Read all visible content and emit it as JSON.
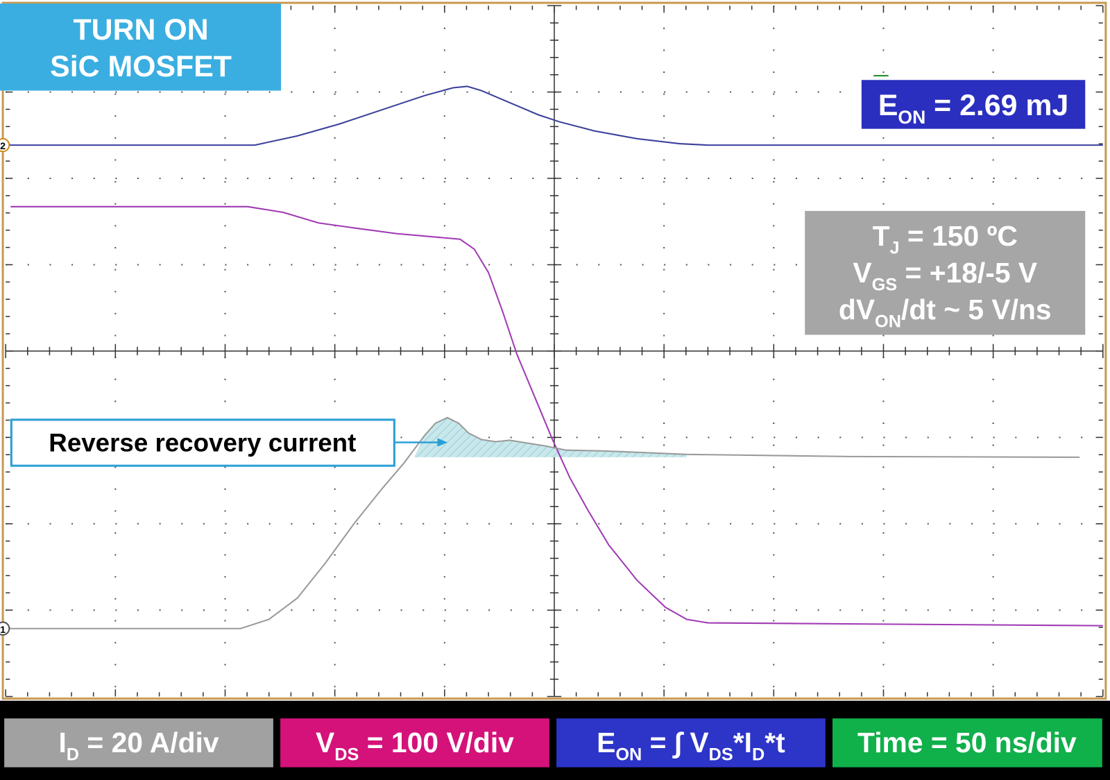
{
  "title": [
    "TURN ON",
    "SiC MOSFET"
  ],
  "energy_result": [
    "E",
    "ON",
    " = 2.69 mJ"
  ],
  "conditions": [
    [
      "T",
      "J",
      " = 150 ºC"
    ],
    [
      "V",
      "GS",
      " = +18/-5 V"
    ],
    [
      "dV",
      "ON",
      "/dt ~ 5 V/ns"
    ]
  ],
  "annotation": "Reverse recovery current",
  "channel_markers": [
    "2",
    "1"
  ],
  "legend": [
    [
      "I",
      "D",
      " = 20 A/div"
    ],
    [
      "V",
      "DS",
      " = 100 V/div"
    ],
    [
      "E",
      "ON",
      " = ∫ V",
      "DS",
      "*I",
      "D",
      "*t"
    ],
    [
      "Time = 50 ns/div"
    ]
  ]
}
